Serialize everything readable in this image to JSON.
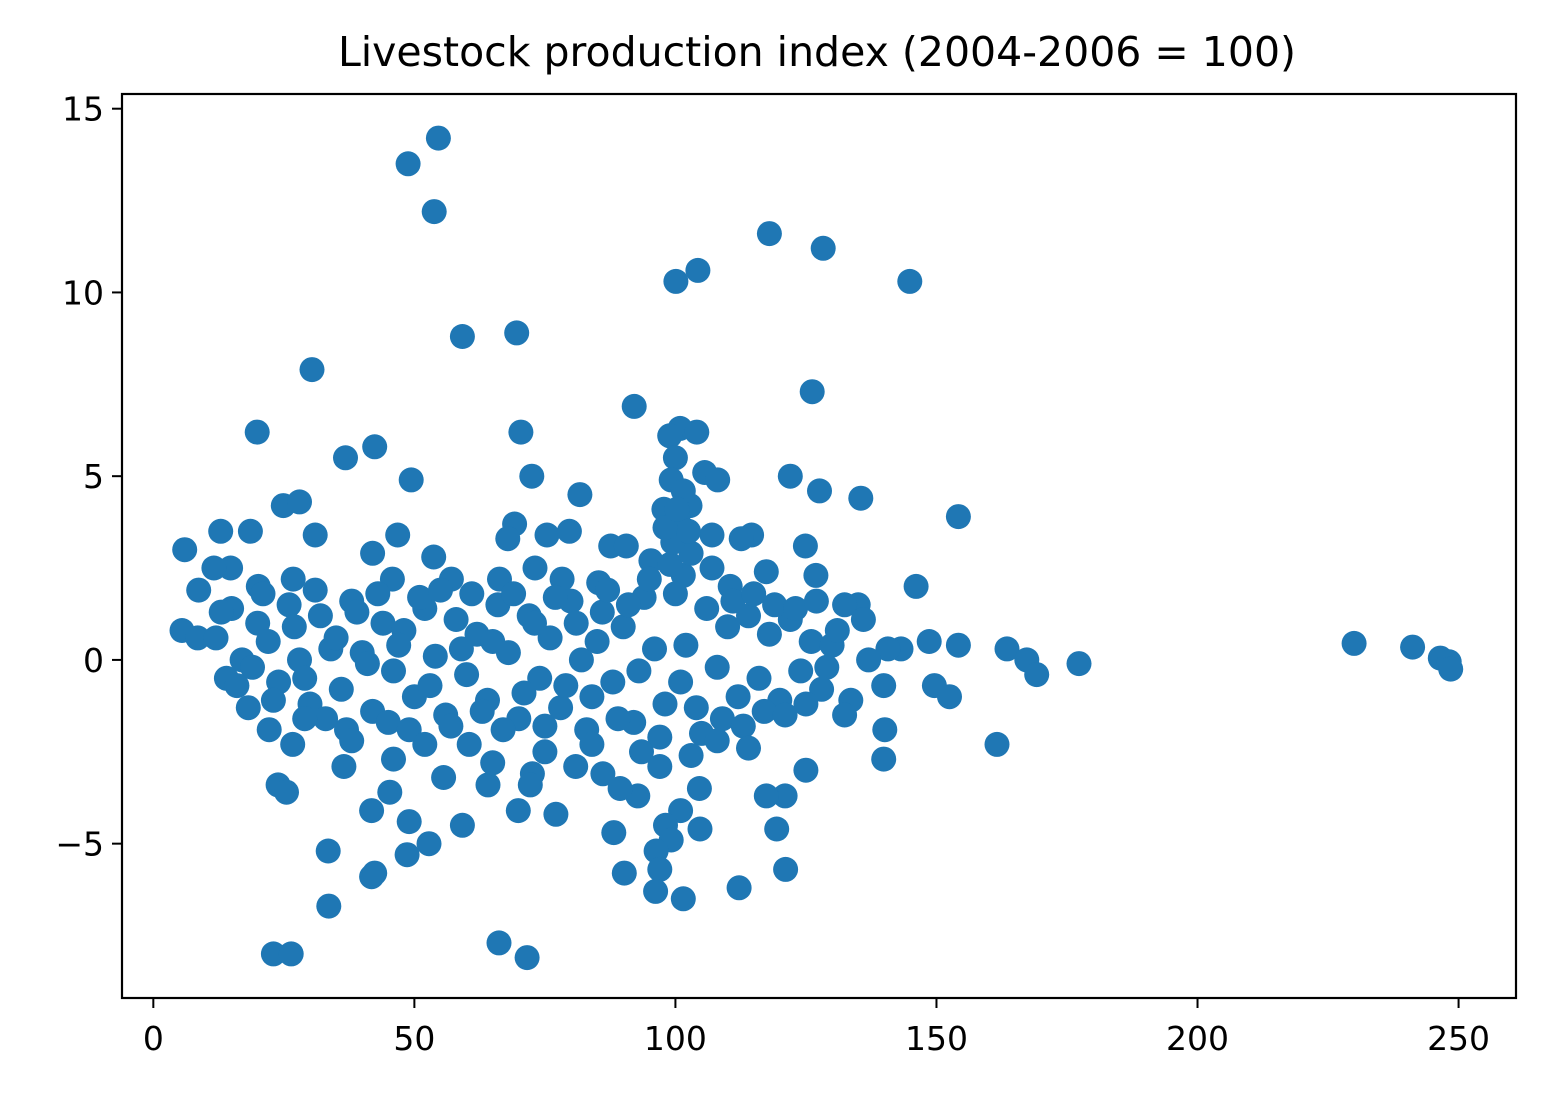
{
  "chart_data": {
    "type": "scatter",
    "title": "Livestock production index (2004-2006 = 100)",
    "xlabel": "",
    "ylabel": "",
    "xlim": [
      -6,
      261
    ],
    "ylim": [
      -9.2,
      15.4
    ],
    "xticks": [
      0,
      50,
      100,
      150,
      200,
      250
    ],
    "xtick_labels": [
      "0",
      "50",
      "100",
      "150",
      "200",
      "250"
    ],
    "yticks": [
      -5,
      0,
      5,
      10,
      15
    ],
    "ytick_labels": [
      "−5",
      "0",
      "5",
      "10",
      "15"
    ],
    "grid": false,
    "legend": "none",
    "marker_color": "#1f77b4",
    "points_shown": "outlying points transcribed individually; dense central cluster approximated",
    "points": [
      [
        54.6,
        14.2
      ],
      [
        48.8,
        13.5
      ],
      [
        53.8,
        12.2
      ],
      [
        118,
        11.6
      ],
      [
        128.3,
        11.2
      ],
      [
        104.3,
        10.6
      ],
      [
        100.1,
        10.3
      ],
      [
        144.9,
        10.3
      ],
      [
        59.2,
        8.8
      ],
      [
        69.6,
        8.9
      ],
      [
        30.4,
        7.9
      ],
      [
        126.2,
        7.3
      ],
      [
        92.1,
        6.9
      ],
      [
        19.9,
        6.2
      ],
      [
        70.4,
        6.2
      ],
      [
        100.9,
        6.3
      ],
      [
        104.1,
        6.2
      ],
      [
        98.9,
        6.1
      ],
      [
        42.4,
        5.8
      ],
      [
        36.8,
        5.5
      ],
      [
        49.4,
        4.9
      ],
      [
        72.5,
        5.0
      ],
      [
        105.6,
        5.1
      ],
      [
        108.1,
        4.9
      ],
      [
        122.0,
        5.0
      ],
      [
        127.6,
        4.6
      ],
      [
        135.5,
        4.4
      ],
      [
        81.7,
        4.5
      ],
      [
        100.0,
        5.5
      ],
      [
        99.2,
        4.9
      ],
      [
        154.2,
        3.9
      ],
      [
        24.9,
        4.2
      ],
      [
        28.0,
        4.3
      ],
      [
        18.6,
        3.5
      ],
      [
        12.9,
        3.5
      ],
      [
        31.0,
        3.4
      ],
      [
        46.8,
        3.4
      ],
      [
        69.2,
        3.7
      ],
      [
        75.4,
        3.4
      ],
      [
        79.7,
        3.5
      ],
      [
        102.8,
        4.2
      ],
      [
        97.8,
        4.1
      ],
      [
        107.0,
        3.4
      ],
      [
        114.6,
        3.4
      ],
      [
        112.6,
        3.3
      ],
      [
        6.0,
        3.0
      ],
      [
        14.8,
        2.5
      ],
      [
        11.6,
        2.5
      ],
      [
        42.0,
        2.9
      ],
      [
        53.7,
        2.8
      ],
      [
        87.6,
        3.1
      ],
      [
        90.6,
        3.1
      ],
      [
        67.9,
        3.3
      ],
      [
        73.1,
        2.5
      ],
      [
        95.3,
        2.7
      ],
      [
        124.9,
        3.1
      ],
      [
        117.4,
        2.4
      ],
      [
        126.9,
        2.3
      ],
      [
        8.7,
        1.9
      ],
      [
        20.1,
        2.0
      ],
      [
        26.8,
        2.2
      ],
      [
        45.8,
        2.2
      ],
      [
        57.1,
        2.2
      ],
      [
        66.3,
        2.2
      ],
      [
        78.3,
        2.2
      ],
      [
        85.3,
        2.1
      ],
      [
        101.5,
        2.3
      ],
      [
        110.5,
        2.0
      ],
      [
        146.1,
        2.0
      ],
      [
        135.0,
        1.5
      ],
      [
        132.4,
        1.5
      ],
      [
        136.0,
        1.1
      ],
      [
        5.5,
        0.8
      ],
      [
        8.5,
        0.6
      ],
      [
        148.6,
        0.5
      ],
      [
        154.2,
        0.4
      ],
      [
        163.5,
        0.3
      ],
      [
        167.3,
        0.0
      ],
      [
        169.2,
        -0.4
      ],
      [
        177.3,
        -0.1
      ],
      [
        230.0,
        0.45
      ],
      [
        241.2,
        0.35
      ],
      [
        246.5,
        0.05
      ],
      [
        248.2,
        -0.05
      ],
      [
        248.5,
        -0.25
      ],
      [
        143.2,
        0.3
      ],
      [
        140.7,
        0.3
      ],
      [
        137.0,
        0.0
      ],
      [
        139.9,
        -0.7
      ],
      [
        149.6,
        -0.7
      ],
      [
        152.5,
        -1.0
      ],
      [
        133.6,
        -1.1
      ],
      [
        132.4,
        -1.5
      ],
      [
        140.1,
        -1.9
      ],
      [
        139.9,
        -2.7
      ],
      [
        161.6,
        -2.3
      ],
      [
        125.0,
        -3.0
      ],
      [
        121.0,
        -3.7
      ],
      [
        117.4,
        -3.7
      ],
      [
        119.4,
        -4.6
      ],
      [
        121.1,
        -5.7
      ],
      [
        112.2,
        -6.2
      ],
      [
        104.6,
        -3.5
      ],
      [
        104.7,
        -4.6
      ],
      [
        101.0,
        -4.1
      ],
      [
        98.1,
        -4.5
      ],
      [
        99.2,
        -4.9
      ],
      [
        96.3,
        -5.2
      ],
      [
        97.0,
        -5.7
      ],
      [
        96.2,
        -6.3
      ],
      [
        101.5,
        -6.5
      ],
      [
        90.2,
        -5.8
      ],
      [
        88.2,
        -4.7
      ],
      [
        92.8,
        -3.7
      ],
      [
        89.4,
        -3.5
      ],
      [
        86.1,
        -3.1
      ],
      [
        77.1,
        -4.2
      ],
      [
        80.9,
        -2.9
      ],
      [
        72.6,
        -3.1
      ],
      [
        72.2,
        -3.4
      ],
      [
        69.9,
        -4.1
      ],
      [
        66.2,
        -7.7
      ],
      [
        71.6,
        -8.1
      ],
      [
        64.1,
        -3.4
      ],
      [
        59.2,
        -4.5
      ],
      [
        55.6,
        -3.2
      ],
      [
        52.8,
        -5.0
      ],
      [
        49.0,
        -4.4
      ],
      [
        48.6,
        -5.3
      ],
      [
        45.3,
        -3.6
      ],
      [
        41.8,
        -4.1
      ],
      [
        41.8,
        -5.9
      ],
      [
        42.4,
        -5.8
      ],
      [
        33.5,
        -5.2
      ],
      [
        33.6,
        -6.7
      ],
      [
        36.5,
        -2.9
      ],
      [
        23.9,
        -3.4
      ],
      [
        25.5,
        -3.6
      ],
      [
        23.0,
        -8.0
      ],
      [
        26.4,
        -8.0
      ],
      [
        26.7,
        -2.3
      ],
      [
        22.2,
        -1.9
      ],
      [
        18.2,
        -1.3
      ],
      [
        14.0,
        -0.5
      ],
      [
        15.0,
        1.4
      ],
      [
        13.0,
        1.3
      ],
      [
        12.0,
        0.6
      ],
      [
        17.0,
        0.0
      ],
      [
        16.0,
        -0.7
      ],
      [
        20.0,
        1.0
      ],
      [
        22.0,
        0.5
      ],
      [
        24.0,
        -0.6
      ],
      [
        26.0,
        1.5
      ],
      [
        28.0,
        0.0
      ],
      [
        30.0,
        -1.2
      ],
      [
        32.0,
        1.2
      ],
      [
        34.0,
        0.3
      ],
      [
        36.0,
        -0.8
      ],
      [
        38.0,
        1.6
      ],
      [
        40.0,
        0.2
      ],
      [
        42.0,
        -1.4
      ],
      [
        44.0,
        1.0
      ],
      [
        46.0,
        -0.3
      ],
      [
        48.0,
        0.8
      ],
      [
        50.0,
        -1.0
      ],
      [
        52.0,
        1.4
      ],
      [
        54.0,
        0.1
      ],
      [
        56.0,
        -1.5
      ],
      [
        58.0,
        1.1
      ],
      [
        60.0,
        -0.4
      ],
      [
        62.0,
        0.7
      ],
      [
        64.0,
        -1.1
      ],
      [
        66.0,
        1.5
      ],
      [
        68.0,
        0.2
      ],
      [
        70.0,
        -1.6
      ],
      [
        72.0,
        1.2
      ],
      [
        74.0,
        -0.5
      ],
      [
        76.0,
        0.6
      ],
      [
        78.0,
        -1.3
      ],
      [
        80.0,
        1.6
      ],
      [
        82.0,
        0.0
      ],
      [
        84.0,
        -1.0
      ],
      [
        86.0,
        1.3
      ],
      [
        88.0,
        -0.6
      ],
      [
        90.0,
        0.9
      ],
      [
        92.0,
        -1.7
      ],
      [
        94.0,
        1.7
      ],
      [
        96.0,
        0.3
      ],
      [
        98.0,
        -1.2
      ],
      [
        100.0,
        1.8
      ],
      [
        102.0,
        0.4
      ],
      [
        104.0,
        -1.3
      ],
      [
        106.0,
        1.4
      ],
      [
        108.0,
        -0.2
      ],
      [
        110.0,
        0.9
      ],
      [
        112.0,
        -1.0
      ],
      [
        114.0,
        1.2
      ],
      [
        116.0,
        -0.5
      ],
      [
        118.0,
        0.7
      ],
      [
        120.0,
        -1.1
      ],
      [
        122.0,
        1.1
      ],
      [
        124.0,
        -0.3
      ],
      [
        126.0,
        0.5
      ],
      [
        128.0,
        -0.8
      ],
      [
        130.0,
        0.4
      ],
      [
        19.0,
        -0.2
      ],
      [
        21.0,
        1.8
      ],
      [
        23.0,
        -1.1
      ],
      [
        27.0,
        0.9
      ],
      [
        29.0,
        -0.5
      ],
      [
        31.0,
        1.9
      ],
      [
        33.0,
        -1.6
      ],
      [
        35.0,
        0.6
      ],
      [
        37.0,
        -1.9
      ],
      [
        39.0,
        1.3
      ],
      [
        41.0,
        -0.1
      ],
      [
        43.0,
        1.8
      ],
      [
        45.0,
        -1.7
      ],
      [
        47.0,
        0.4
      ],
      [
        49.0,
        -1.9
      ],
      [
        51.0,
        1.7
      ],
      [
        53.0,
        -0.7
      ],
      [
        55.0,
        1.9
      ],
      [
        57.0,
        -1.8
      ],
      [
        59.0,
        0.3
      ],
      [
        61.0,
        1.8
      ],
      [
        63.0,
        -1.4
      ],
      [
        65.0,
        0.5
      ],
      [
        67.0,
        -1.9
      ],
      [
        69.0,
        1.8
      ],
      [
        71.0,
        -0.9
      ],
      [
        73.0,
        1.0
      ],
      [
        75.0,
        -1.8
      ],
      [
        77.0,
        1.7
      ],
      [
        79.0,
        -0.7
      ],
      [
        81.0,
        1.0
      ],
      [
        83.0,
        -1.9
      ],
      [
        85.0,
        0.5
      ],
      [
        87.0,
        1.9
      ],
      [
        89.0,
        -1.6
      ],
      [
        91.0,
        1.5
      ],
      [
        93.0,
        -0.3
      ],
      [
        95.0,
        2.2
      ],
      [
        97.0,
        -2.1
      ],
      [
        99.0,
        2.6
      ],
      [
        101.0,
        -0.6
      ],
      [
        103.0,
        2.9
      ],
      [
        105.0,
        -2.0
      ],
      [
        107.0,
        2.5
      ],
      [
        109.0,
        -1.6
      ],
      [
        111.0,
        1.6
      ],
      [
        113.0,
        -1.8
      ],
      [
        115.0,
        1.8
      ],
      [
        117.0,
        -1.4
      ],
      [
        119.0,
        1.5
      ],
      [
        121.0,
        -1.5
      ],
      [
        123.0,
        1.4
      ],
      [
        125.0,
        -1.2
      ],
      [
        127.0,
        1.6
      ],
      [
        129.0,
        -0.2
      ],
      [
        131.0,
        0.8
      ],
      [
        60.5,
        -2.3
      ],
      [
        65.0,
        -2.8
      ],
      [
        75.0,
        -2.5
      ],
      [
        84.0,
        -2.3
      ],
      [
        93.5,
        -2.5
      ],
      [
        97.0,
        -2.9
      ],
      [
        103.0,
        -2.6
      ],
      [
        108.0,
        -2.2
      ],
      [
        114.0,
        -2.4
      ],
      [
        46.0,
        -2.7
      ],
      [
        52.0,
        -2.3
      ],
      [
        38.0,
        -2.2
      ],
      [
        29.0,
        -1.6
      ],
      [
        100.5,
        3.9
      ],
      [
        99.5,
        3.2
      ],
      [
        102.5,
        3.5
      ],
      [
        98.0,
        3.6
      ],
      [
        101.5,
        4.6
      ],
      [
        100.3,
        4.1
      ]
    ]
  }
}
